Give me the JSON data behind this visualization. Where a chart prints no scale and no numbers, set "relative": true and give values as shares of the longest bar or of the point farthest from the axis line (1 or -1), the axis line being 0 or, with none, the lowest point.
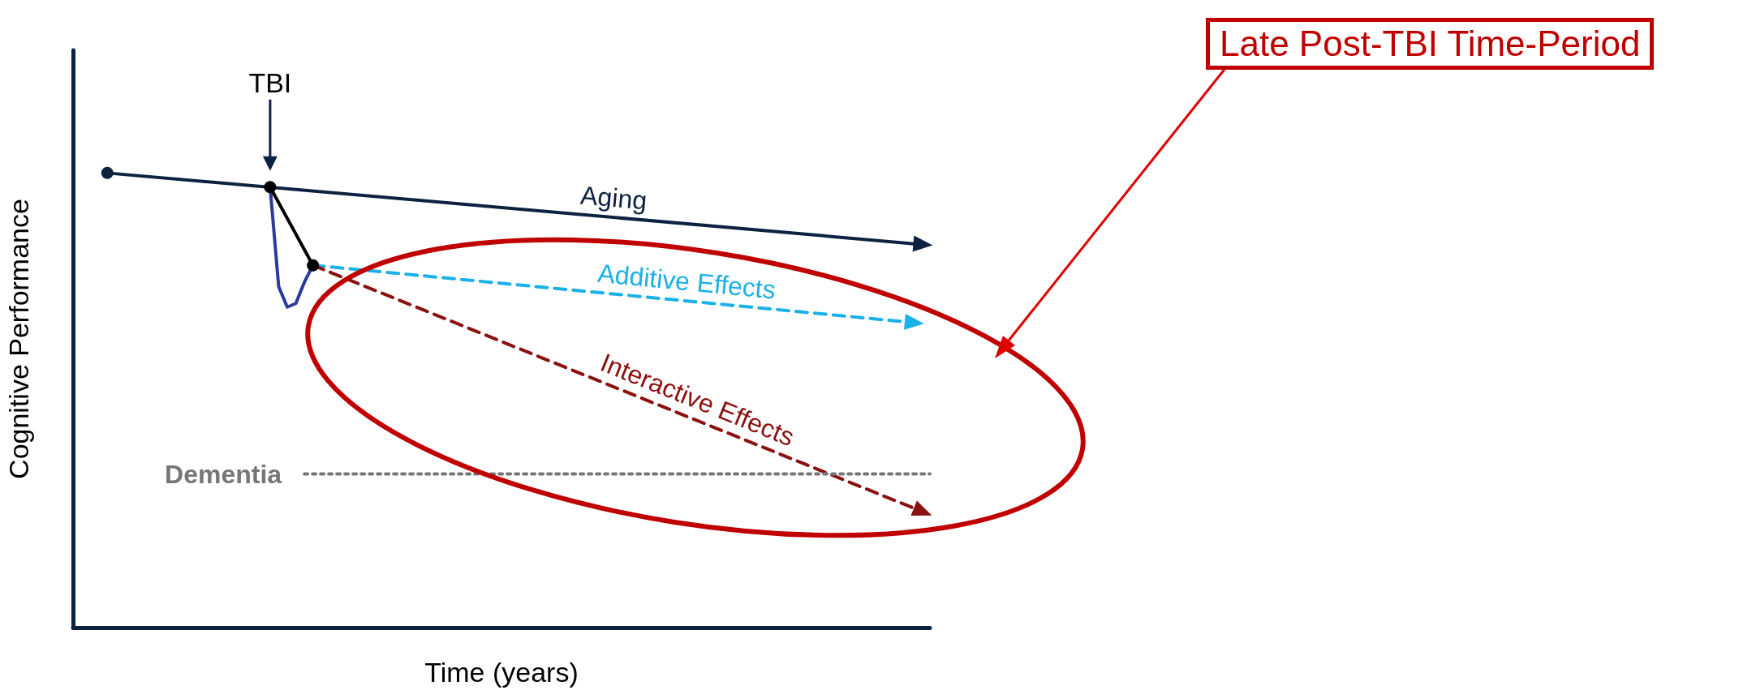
{
  "chart_data": {
    "type": "line",
    "relative": true,
    "xlabel": "Time (years)",
    "ylabel": "Cognitive Performance",
    "grid": false,
    "categories": [
      null,
      null,
      null,
      null,
      null,
      null,
      null,
      null,
      null,
      null,
      null,
      null,
      null,
      null,
      null,
      null,
      null,
      null,
      null,
      null,
      null,
      null,
      null,
      null,
      null,
      null,
      null,
      null,
      null,
      null,
      null,
      null,
      null,
      null,
      null,
      null,
      null,
      null,
      null,
      null,
      null,
      null,
      null,
      null,
      null,
      null,
      null,
      null,
      null,
      null,
      null,
      null,
      null,
      null,
      null,
      null,
      null,
      null,
      null,
      null,
      null,
      null,
      null,
      null,
      null,
      null,
      null,
      null,
      null,
      null,
      null,
      null,
      null,
      null,
      null,
      null,
      null,
      null,
      null,
      null,
      null,
      null,
      null,
      null,
      null,
      null,
      null,
      null,
      null,
      null,
      null,
      null,
      null,
      null,
      null,
      null,
      null,
      null,
      null,
      null,
      null
    ],
    "series": [
      {
        "name": "Aging",
        "color": "#0d2240",
        "line_style": "solid",
        "marker": "circle",
        "values": [
          null,
          null,
          null,
          null,
          1,
          null,
          null,
          null,
          null,
          null,
          null,
          null,
          null,
          null,
          null,
          null,
          null,
          null,
          null,
          null,
          null,
          null,
          null,
          null,
          null,
          null,
          null,
          null,
          null,
          null,
          null,
          null,
          null,
          null,
          null,
          null,
          null,
          null,
          null,
          null,
          null,
          null,
          null,
          null,
          null,
          null,
          null,
          null,
          null,
          null,
          null,
          null,
          null,
          null,
          null,
          null,
          null,
          null,
          null,
          null,
          null,
          null,
          null,
          null,
          null,
          null,
          null,
          null,
          null,
          null,
          null,
          null,
          null,
          null,
          null,
          null,
          null,
          null,
          null,
          null,
          null,
          null,
          null,
          null,
          null,
          null,
          null,
          null,
          null,
          null,
          null,
          null,
          null,
          null,
          null,
          null,
          null,
          null,
          null,
          0.843,
          null
        ]
      },
      {
        "color": "#2b3a9e",
        "line_style": "solid",
        "marker": "none",
        "values": [
          null,
          null,
          null,
          null,
          null,
          null,
          null,
          null,
          null,
          null,
          null,
          null,
          null,
          null,
          null,
          null,
          null,
          null,
          null,
          null,
          null,
          null,
          null,
          0.969,
          0.75,
          0.705,
          0.713,
          0.76,
          0.797,
          null,
          null,
          null,
          null,
          null,
          null,
          null,
          null,
          null,
          null,
          null,
          null,
          null,
          null,
          null,
          null,
          null,
          null,
          null,
          null,
          null,
          null,
          null,
          null,
          null,
          null,
          null,
          null,
          null,
          null,
          null,
          null,
          null,
          null,
          null,
          null,
          null,
          null,
          null,
          null,
          null,
          null,
          null,
          null,
          null,
          null,
          null,
          null,
          null,
          null,
          null,
          null,
          null,
          null,
          null,
          null,
          null,
          null,
          null,
          null,
          null,
          null,
          null,
          null,
          null,
          null,
          null,
          null,
          null,
          null,
          null,
          null
        ]
      },
      {
        "color": "#000000",
        "line_style": "solid",
        "marker": "circle",
        "values": [
          null,
          null,
          null,
          null,
          null,
          null,
          null,
          null,
          null,
          null,
          null,
          null,
          null,
          null,
          null,
          null,
          null,
          null,
          null,
          null,
          null,
          null,
          null,
          0.969,
          null,
          null,
          null,
          null,
          0.797,
          null,
          null,
          null,
          null,
          null,
          null,
          null,
          null,
          null,
          null,
          null,
          null,
          null,
          null,
          null,
          null,
          null,
          null,
          null,
          null,
          null,
          null,
          null,
          null,
          null,
          null,
          null,
          null,
          null,
          null,
          null,
          null,
          null,
          null,
          null,
          null,
          null,
          null,
          null,
          null,
          null,
          null,
          null,
          null,
          null,
          null,
          null,
          null,
          null,
          null,
          null,
          null,
          null,
          null,
          null,
          null,
          null,
          null,
          null,
          null,
          null,
          null,
          null,
          null,
          null,
          null,
          null,
          null,
          null,
          null,
          null,
          null
        ]
      },
      {
        "name": "Additive Effects",
        "color": "#1ab0e8",
        "line_style": "dashed",
        "values": [
          null,
          null,
          null,
          null,
          null,
          null,
          null,
          null,
          null,
          null,
          null,
          null,
          null,
          null,
          null,
          null,
          null,
          null,
          null,
          null,
          null,
          null,
          null,
          null,
          null,
          null,
          null,
          null,
          0.797,
          null,
          null,
          null,
          null,
          null,
          null,
          null,
          null,
          null,
          null,
          null,
          null,
          null,
          null,
          null,
          null,
          null,
          null,
          null,
          null,
          null,
          null,
          null,
          null,
          null,
          null,
          null,
          null,
          null,
          null,
          null,
          null,
          null,
          null,
          null,
          null,
          null,
          null,
          null,
          null,
          null,
          null,
          null,
          null,
          null,
          null,
          null,
          null,
          null,
          null,
          null,
          null,
          null,
          null,
          null,
          null,
          null,
          null,
          null,
          null,
          null,
          null,
          null,
          null,
          null,
          null,
          null,
          null,
          null,
          0.671,
          null,
          null
        ]
      },
      {
        "name": "Interactive Effects",
        "color": "#8b1010",
        "line_style": "dashed",
        "values": [
          null,
          null,
          null,
          null,
          null,
          null,
          null,
          null,
          null,
          null,
          null,
          null,
          null,
          null,
          null,
          null,
          null,
          null,
          null,
          null,
          null,
          null,
          null,
          null,
          null,
          null,
          null,
          null,
          0.797,
          null,
          null,
          null,
          null,
          null,
          null,
          null,
          null,
          null,
          null,
          null,
          null,
          null,
          null,
          null,
          null,
          null,
          null,
          null,
          null,
          null,
          null,
          null,
          null,
          null,
          null,
          null,
          null,
          null,
          null,
          null,
          null,
          null,
          null,
          null,
          null,
          null,
          null,
          null,
          null,
          null,
          null,
          null,
          null,
          null,
          null,
          null,
          null,
          null,
          null,
          null,
          null,
          null,
          null,
          null,
          null,
          null,
          null,
          null,
          null,
          null,
          null,
          null,
          null,
          null,
          null,
          null,
          null,
          null,
          null,
          0.256,
          null
        ]
      },
      {
        "name": "Dementia",
        "color": "#777777",
        "line_style": "dotted",
        "marker": "none",
        "values": [
          null,
          null,
          null,
          null,
          null,
          null,
          null,
          null,
          null,
          null,
          null,
          null,
          null,
          null,
          null,
          null,
          null,
          null,
          null,
          null,
          null,
          null,
          null,
          null,
          null,
          null,
          null,
          0.338,
          null,
          null,
          null,
          null,
          null,
          null,
          null,
          null,
          null,
          null,
          null,
          null,
          null,
          null,
          null,
          null,
          null,
          null,
          null,
          null,
          null,
          null,
          null,
          null,
          null,
          null,
          null,
          null,
          null,
          null,
          null,
          null,
          null,
          null,
          null,
          null,
          null,
          null,
          null,
          null,
          null,
          null,
          null,
          null,
          null,
          null,
          null,
          null,
          null,
          null,
          null,
          null,
          null,
          null,
          null,
          null,
          null,
          null,
          null,
          null,
          null,
          null,
          null,
          null,
          null,
          null,
          null,
          null,
          null,
          null,
          null,
          null,
          0.338
        ]
      }
    ],
    "annotations": [
      "TBI",
      "Late Post-TBI Time-Period"
    ]
  }
}
